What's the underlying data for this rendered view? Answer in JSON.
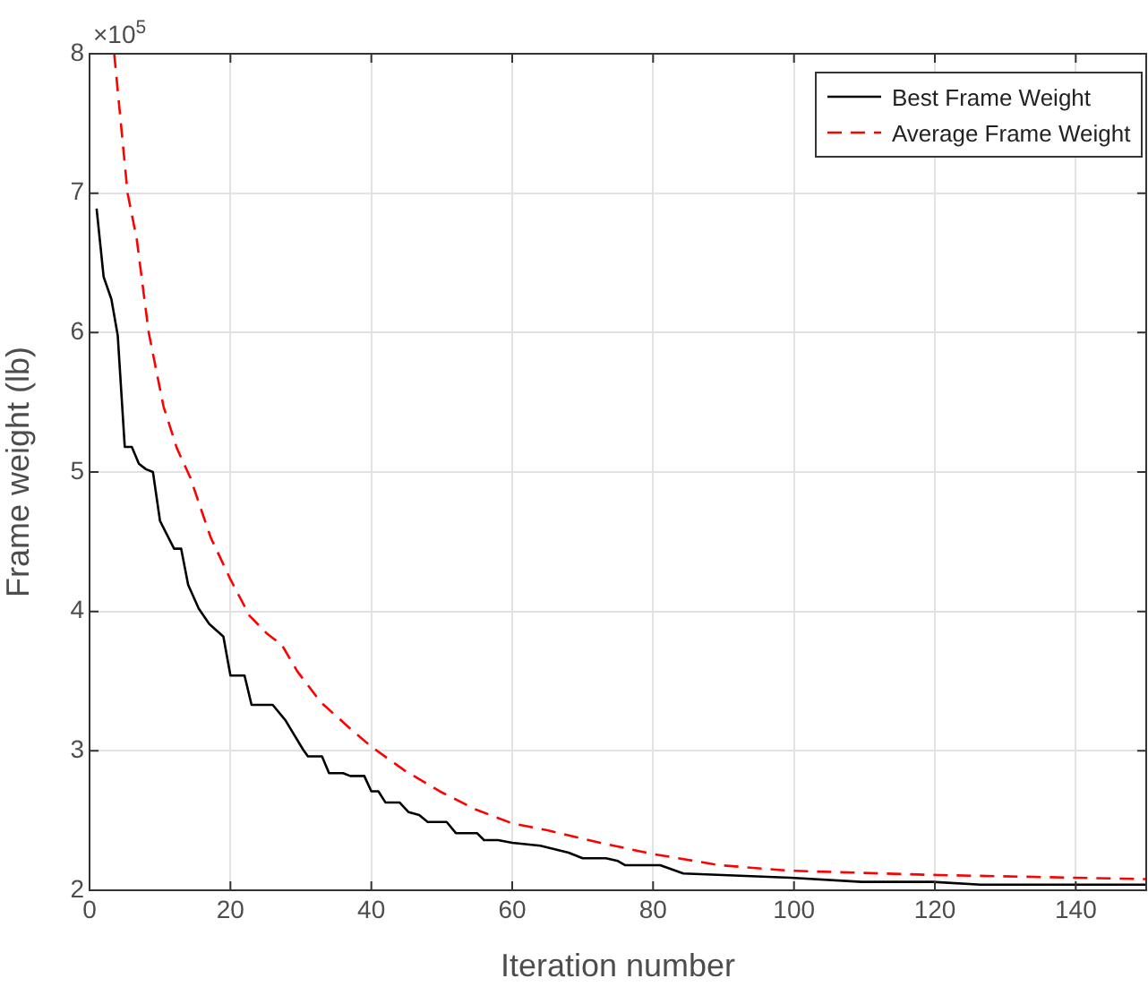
{
  "chart_data": {
    "type": "line",
    "xlabel": "Iteration number",
    "ylabel": "Frame weight (lb)",
    "xlim": [
      0,
      150
    ],
    "xticks": [
      0,
      20,
      40,
      60,
      80,
      100,
      120,
      140
    ],
    "ylim": [
      2,
      8
    ],
    "yticks": [
      2,
      3,
      4,
      5,
      6,
      7,
      8
    ],
    "grid": true,
    "legend": "top right",
    "marker": "none",
    "annotations": [
      "×10$^{5}$"
    ],
    "series": [
      {
        "name": "Best Frame Weight",
        "color": "#000000",
        "line_style": "solid",
        "x": [
          1,
          2,
          3.1,
          4,
          5,
          6,
          7,
          8,
          9,
          10,
          11,
          12,
          13,
          14,
          15.5,
          17,
          19,
          20,
          22,
          23,
          26,
          27.8,
          30.3,
          31,
          33,
          34,
          36,
          37,
          39,
          40,
          41,
          42,
          44,
          45.3,
          46.8,
          48,
          50.7,
          52,
          55,
          56,
          58,
          60,
          64,
          68,
          70,
          73.3,
          75,
          76,
          81,
          84.3,
          99.5,
          109.6,
          119.7,
          126.5,
          150
        ],
        "values": [
          6.89,
          6.4,
          6.24,
          5.98,
          5.18,
          5.18,
          5.06,
          5.02,
          5.0,
          4.65,
          4.55,
          4.45,
          4.45,
          4.19,
          4.02,
          3.91,
          3.82,
          3.54,
          3.54,
          3.33,
          3.33,
          3.22,
          3.01,
          2.96,
          2.96,
          2.84,
          2.84,
          2.82,
          2.82,
          2.71,
          2.71,
          2.63,
          2.63,
          2.56,
          2.54,
          2.49,
          2.49,
          2.41,
          2.41,
          2.36,
          2.36,
          2.34,
          2.32,
          2.27,
          2.23,
          2.23,
          2.21,
          2.18,
          2.18,
          2.12,
          2.09,
          2.06,
          2.06,
          2.04,
          2.04
        ]
      },
      {
        "name": "Average Frame Weight",
        "color": "#ff0000",
        "line_style": "dashed",
        "x": [
          3.5,
          5.4,
          6.7,
          8.4,
          10.5,
          12.4,
          14.3,
          17.2,
          20,
          22.7,
          25.2,
          27.3,
          29.5,
          32.8,
          37,
          40,
          44.7,
          49.7,
          54.8,
          60,
          65,
          72.5,
          80,
          89.4,
          99.5,
          119.7,
          140,
          150
        ],
        "values": [
          8.0,
          7.0,
          6.67,
          6.0,
          5.47,
          5.17,
          4.96,
          4.53,
          4.23,
          3.97,
          3.84,
          3.76,
          3.57,
          3.35,
          3.16,
          3.03,
          2.86,
          2.71,
          2.58,
          2.48,
          2.43,
          2.34,
          2.26,
          2.18,
          2.14,
          2.11,
          2.09,
          2.08
        ]
      }
    ]
  }
}
